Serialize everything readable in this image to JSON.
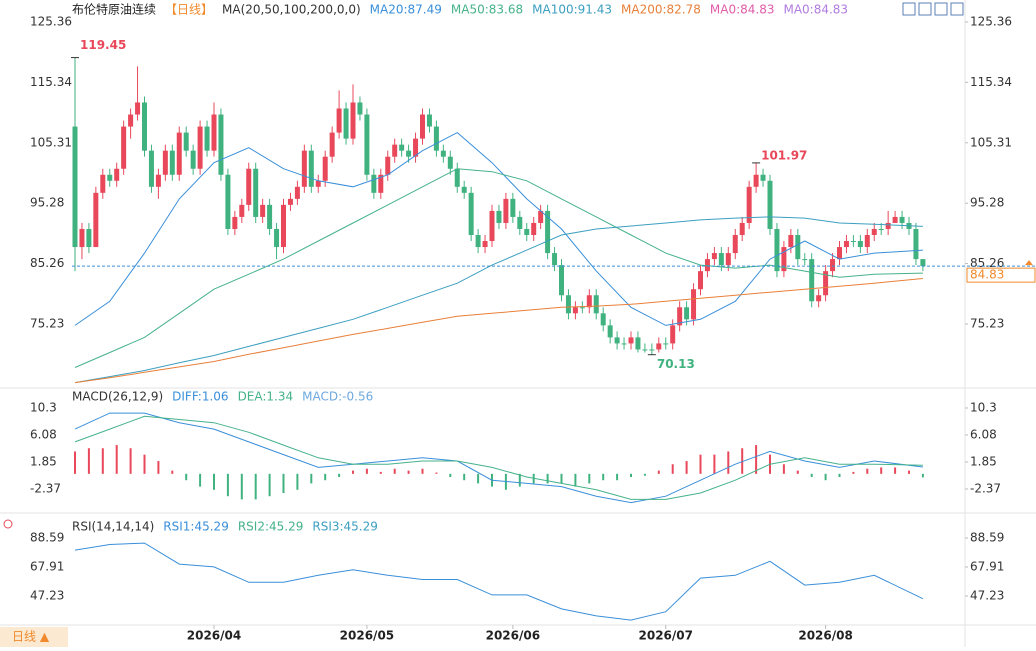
{
  "header": {
    "instrument": "布伦特原油连续",
    "period": "【日线】"
  },
  "footer": {
    "period_button": "日线 ▲"
  },
  "chart_data": [
    {
      "type": "candlestick",
      "legend_title": "MA(20,50,100,200,0,0)",
      "ylim": [
        65.1,
        127.35
      ],
      "yticks": [
        125.36,
        115.34,
        105.31,
        95.28,
        85.26,
        75.23
      ],
      "up_color": "#e8485a",
      "down_color": "#3fb27f",
      "last_color": "#f08a2c",
      "candles": [
        [
          108,
          119.45,
          84,
          88
        ],
        [
          88,
          92,
          86,
          91
        ],
        [
          91,
          92,
          87,
          88
        ],
        [
          88,
          98,
          88,
          97
        ],
        [
          97,
          101,
          96,
          100
        ],
        [
          100,
          101,
          98,
          99
        ],
        [
          99,
          102,
          98,
          101
        ],
        [
          101,
          109,
          100,
          108
        ],
        [
          108,
          111,
          106,
          110
        ],
        [
          110,
          118,
          109,
          112
        ],
        [
          112,
          113,
          103,
          104
        ],
        [
          104,
          105,
          97,
          98
        ],
        [
          98,
          101,
          96,
          100
        ],
        [
          100,
          105,
          99,
          104
        ],
        [
          104,
          105,
          99,
          100
        ],
        [
          100,
          108,
          99,
          107
        ],
        [
          107,
          108,
          103,
          104
        ],
        [
          104,
          105,
          100,
          101
        ],
        [
          101,
          109,
          100,
          108
        ],
        [
          108,
          109,
          103,
          104
        ],
        [
          104,
          112,
          103,
          110
        ],
        [
          110,
          111,
          99,
          100
        ],
        [
          100,
          101,
          90,
          91
        ],
        [
          91,
          94,
          90,
          93
        ],
        [
          93,
          96,
          92,
          95
        ],
        [
          95,
          102,
          94,
          101
        ],
        [
          101,
          102,
          92,
          93
        ],
        [
          93,
          96,
          92,
          95
        ],
        [
          95,
          96,
          90,
          91
        ],
        [
          91,
          92,
          86,
          88
        ],
        [
          88,
          96,
          87,
          95
        ],
        [
          95,
          97,
          94,
          96
        ],
        [
          96,
          99,
          95,
          98
        ],
        [
          98,
          105,
          97,
          104
        ],
        [
          104,
          105,
          97,
          98
        ],
        [
          98,
          100,
          97,
          99
        ],
        [
          99,
          104,
          98,
          103
        ],
        [
          103,
          108,
          102,
          107
        ],
        [
          107,
          114,
          106,
          111
        ],
        [
          111,
          112,
          105,
          106
        ],
        [
          106,
          115,
          105,
          112
        ],
        [
          112,
          113,
          109,
          110
        ],
        [
          110,
          111,
          99,
          100
        ],
        [
          100,
          101,
          96,
          97
        ],
        [
          97,
          101,
          96,
          100
        ],
        [
          100,
          104,
          99,
          103
        ],
        [
          103,
          106,
          102,
          105
        ],
        [
          105,
          106,
          103,
          104
        ],
        [
          104,
          105,
          102,
          103
        ],
        [
          103,
          107,
          102,
          106
        ],
        [
          106,
          111,
          105,
          110
        ],
        [
          110,
          111,
          107,
          108
        ],
        [
          108,
          109,
          103,
          104
        ],
        [
          104,
          105,
          102,
          103
        ],
        [
          103,
          104,
          100,
          101
        ],
        [
          101,
          102,
          97,
          98
        ],
        [
          98,
          99,
          96,
          97
        ],
        [
          97,
          98,
          89,
          90
        ],
        [
          90,
          91,
          87,
          88
        ],
        [
          88,
          90,
          87,
          89
        ],
        [
          89,
          95,
          88,
          94
        ],
        [
          94,
          95,
          91,
          92
        ],
        [
          92,
          97,
          91,
          96
        ],
        [
          96,
          97,
          92,
          93
        ],
        [
          93,
          94,
          90,
          91
        ],
        [
          91,
          92,
          89,
          90
        ],
        [
          90,
          93,
          89,
          92
        ],
        [
          92,
          95,
          91,
          94
        ],
        [
          94,
          95,
          86,
          87
        ],
        [
          87,
          88,
          84,
          85
        ],
        [
          85,
          86,
          79,
          80
        ],
        [
          80,
          81,
          76,
          77
        ],
        [
          77,
          79,
          76,
          78
        ],
        [
          78,
          79,
          77,
          78
        ],
        [
          78,
          81,
          77,
          80
        ],
        [
          80,
          81,
          76,
          77
        ],
        [
          77,
          78,
          74,
          75
        ],
        [
          75,
          76,
          72,
          73
        ],
        [
          73,
          74,
          71,
          72
        ],
        [
          72,
          73,
          71,
          72
        ],
        [
          72,
          74,
          71,
          73
        ],
        [
          73,
          74,
          70.5,
          71
        ],
        [
          71,
          72,
          70.5,
          71
        ],
        [
          71,
          72,
          70.13,
          71
        ],
        [
          71,
          73,
          70.5,
          72
        ],
        [
          72,
          73,
          71,
          72
        ],
        [
          72,
          76,
          71,
          75
        ],
        [
          75,
          79,
          74,
          78
        ],
        [
          78,
          79,
          75,
          76
        ],
        [
          76,
          82,
          75,
          81
        ],
        [
          81,
          85,
          80,
          84
        ],
        [
          84,
          87,
          83,
          86
        ],
        [
          86,
          88,
          85,
          87
        ],
        [
          87,
          88,
          84,
          85
        ],
        [
          85,
          88,
          84,
          87
        ],
        [
          87,
          91,
          86,
          90
        ],
        [
          90,
          93,
          89,
          92
        ],
        [
          92,
          99,
          91,
          98
        ],
        [
          98,
          101.97,
          97,
          100
        ],
        [
          100,
          101,
          98,
          99
        ],
        [
          99,
          100,
          90,
          91
        ],
        [
          91,
          92,
          83,
          84
        ],
        [
          84,
          89,
          83,
          88
        ],
        [
          88,
          91,
          87,
          90
        ],
        [
          90,
          91,
          85,
          86
        ],
        [
          86,
          87,
          85,
          86
        ],
        [
          86,
          87,
          78,
          79
        ],
        [
          79,
          81,
          78,
          80
        ],
        [
          80,
          85,
          79,
          84
        ],
        [
          84,
          87,
          83,
          86
        ],
        [
          86,
          89,
          85,
          88
        ],
        [
          88,
          90,
          87,
          89
        ],
        [
          89,
          90,
          88,
          89
        ],
        [
          89,
          90,
          87,
          88
        ],
        [
          88,
          91,
          87,
          90
        ],
        [
          90,
          92,
          89,
          91
        ],
        [
          91,
          92,
          90,
          91
        ],
        [
          91,
          94,
          90,
          92
        ],
        [
          92,
          94,
          92,
          93
        ],
        [
          93,
          94,
          91,
          92
        ],
        [
          92,
          93,
          90,
          91
        ],
        [
          91,
          92,
          85,
          86
        ],
        [
          86,
          86,
          84,
          84.83
        ]
      ],
      "sample_x": [
        0,
        5,
        10,
        15,
        20,
        25,
        30,
        35,
        40,
        45,
        50,
        55,
        60,
        65,
        70,
        75,
        80,
        85,
        90,
        95,
        100,
        105,
        110,
        115,
        122
      ],
      "ma": [
        {
          "label": "MA20:87.49",
          "color": "#3a8fd9",
          "values": [
            75,
            79,
            87,
            96,
            102,
            104.5,
            101,
            99,
            98,
            100,
            104,
            107,
            102,
            96,
            91,
            84,
            78,
            75,
            76,
            79,
            86,
            89,
            86,
            87,
            87.49
          ]
        },
        {
          "label": "MA50:83.68",
          "color": "#45b28a",
          "values": [
            68,
            70.5,
            73,
            77,
            81,
            83.5,
            86,
            89,
            92,
            95,
            98,
            101,
            100.5,
            99,
            96,
            93,
            90,
            87,
            85,
            84.5,
            85,
            84,
            83,
            83.5,
            83.68
          ]
        },
        {
          "label": "MA100:91.43",
          "color": "#3c9fc0",
          "values": [
            65.5,
            66.5,
            67.5,
            68.8,
            70,
            71.5,
            73,
            74.5,
            76,
            78,
            80,
            82,
            85,
            87.5,
            90,
            91,
            91.5,
            92,
            92.5,
            92.8,
            93,
            92.8,
            92,
            91.8,
            91.43
          ]
        },
        {
          "label": "MA200:82.78",
          "color": "#e8803a",
          "values": [
            65.5,
            66.3,
            67.2,
            68.1,
            69,
            70.2,
            71.3,
            72.4,
            73.5,
            74.5,
            75.5,
            76.5,
            77,
            77.5,
            78,
            78.2,
            78.5,
            79,
            79.5,
            80,
            80.5,
            81,
            81.5,
            82,
            82.78
          ]
        }
      ],
      "legend_extra": [
        {
          "label": "MA0:84.83",
          "color": "#e05ca8"
        },
        {
          "label": "MA0:84.83",
          "color": "#b07ce0"
        }
      ]
    },
    {
      "type": "macd",
      "legend_title": "MACD(26,12,9)",
      "ylim": [
        -5.66,
        12.8
      ],
      "yticks": [
        10.3,
        6.08,
        1.85,
        -2.37
      ],
      "sample_x": [
        0,
        5,
        10,
        15,
        20,
        25,
        30,
        35,
        40,
        45,
        50,
        55,
        60,
        65,
        70,
        75,
        80,
        85,
        90,
        95,
        100,
        105,
        110,
        115,
        122
      ],
      "series": [
        {
          "label": "DIFF:1.06",
          "color": "#3a8fd9",
          "values": [
            7,
            9.5,
            9.5,
            8,
            7,
            5,
            3,
            1,
            1.5,
            2,
            2.5,
            2,
            -1,
            -1.5,
            -2,
            -3.5,
            -4.5,
            -3.5,
            -1,
            1.5,
            3.5,
            2,
            1,
            2,
            1.06
          ]
        },
        {
          "label": "DEA:1.34",
          "color": "#45b28a",
          "values": [
            5,
            7,
            9,
            8.5,
            8,
            6.5,
            4.5,
            2.5,
            1.5,
            1.5,
            2,
            2,
            1,
            -0.5,
            -1.5,
            -2.5,
            -4,
            -4,
            -3,
            -1,
            1.5,
            2.5,
            1.5,
            1.5,
            1.34
          ]
        }
      ],
      "hist_label": "MACD:-0.56",
      "hist_label_color": "#6fa8dc",
      "up_color": "#e8485a",
      "down_color": "#3fb27f",
      "hist_x": [
        0,
        2,
        4,
        6,
        8,
        10,
        12,
        14,
        16,
        18,
        20,
        22,
        24,
        26,
        28,
        30,
        32,
        34,
        36,
        38,
        40,
        42,
        44,
        46,
        48,
        50,
        52,
        54,
        56,
        58,
        60,
        62,
        64,
        66,
        68,
        70,
        72,
        74,
        76,
        78,
        80,
        82,
        84,
        86,
        88,
        90,
        92,
        94,
        96,
        98,
        100,
        102,
        104,
        106,
        108,
        110,
        112,
        114,
        116,
        118,
        120,
        122
      ],
      "hist": [
        3.5,
        4,
        4,
        4.5,
        4,
        3,
        2,
        0.5,
        -1,
        -2,
        -2.5,
        -3.5,
        -4,
        -4,
        -3.5,
        -3,
        -2.5,
        -1.5,
        -1,
        -0.5,
        0.5,
        0.8,
        0.3,
        0.8,
        0.5,
        0.8,
        0.2,
        -0.5,
        -1,
        -1.5,
        -2,
        -2.5,
        -2,
        -1.5,
        -1.5,
        -1.5,
        -2,
        -1.5,
        -1,
        -1,
        -0.5,
        -0.3,
        0.5,
        1.5,
        2,
        3,
        3,
        3.5,
        4,
        4.5,
        3,
        1.5,
        0.5,
        -0.5,
        -1,
        -0.5,
        0.3,
        0.8,
        1,
        1,
        0.5,
        -0.56
      ]
    },
    {
      "type": "line",
      "legend_title": "RSI(14,14,14)",
      "ylim": [
        26.5,
        103.6
      ],
      "yticks": [
        88.59,
        67.91,
        47.23
      ],
      "sample_x": [
        0,
        5,
        10,
        15,
        20,
        25,
        30,
        35,
        40,
        45,
        50,
        55,
        60,
        65,
        70,
        75,
        80,
        85,
        90,
        95,
        100,
        105,
        110,
        115,
        122
      ],
      "series": [
        {
          "label": "RSI1:45.29",
          "color": "#3a8fd9",
          "values": [
            80,
            84,
            85,
            70,
            68,
            57,
            57,
            62,
            66,
            62,
            59,
            59,
            48,
            48,
            38,
            33,
            30,
            36,
            60,
            62,
            72,
            55,
            57,
            62,
            45.29
          ]
        }
      ],
      "legend_extra": [
        {
          "label": "RSI2:45.29",
          "color": "#45b28a"
        },
        {
          "label": "RSI3:45.29",
          "color": "#3c9fc0"
        }
      ],
      "xticks": [
        {
          "value": 20,
          "label": "2026/04"
        },
        {
          "value": 42,
          "label": "2026/05"
        },
        {
          "value": 63,
          "label": "2026/06"
        },
        {
          "value": 85,
          "label": "2026/07"
        },
        {
          "value": 108,
          "label": "2026/08"
        }
      ]
    }
  ]
}
